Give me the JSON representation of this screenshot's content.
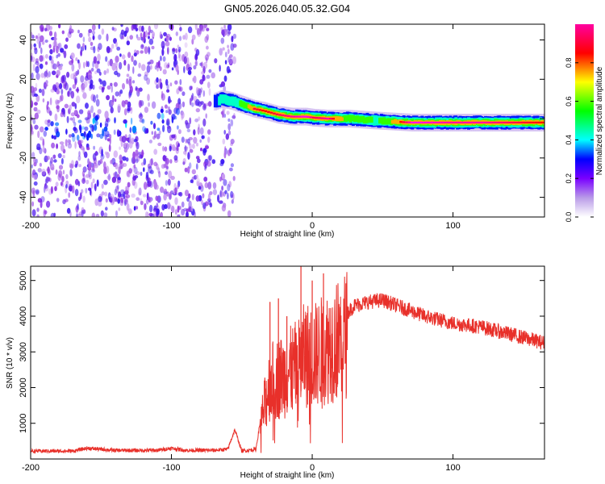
{
  "title": "GN05.2026.040.05.32.G04",
  "chart_data": [
    {
      "type": "heatmap",
      "xlabel": "Height of straight line (km)",
      "ylabel": "Frequency (Hz)",
      "xlim": [
        -200,
        165
      ],
      "ylim": [
        -50,
        48
      ],
      "x_ticks": [
        -200,
        -100,
        0,
        100
      ],
      "y_ticks": [
        -40,
        -20,
        0,
        20,
        40
      ],
      "colorbar": {
        "label": "Normalized spectral amplitude",
        "range": [
          0,
          1
        ],
        "ticks": [
          0.0,
          0.2,
          0.4,
          0.6,
          0.8
        ],
        "tick_labels": [
          "0.0",
          "0.2",
          "0.4",
          "0.6",
          "0.8"
        ],
        "colors": [
          "#ffffff",
          "#8a2be2",
          "#0000ff",
          "#00ffff",
          "#00ff00",
          "#ffff00",
          "#ff0000",
          "#ff00ff"
        ]
      },
      "noise_region_x": [
        -200,
        -55
      ],
      "signal_ridge": {
        "x": [
          -72,
          -65,
          -58,
          -50,
          -42,
          -35,
          -25,
          -15,
          -5,
          0,
          10,
          25,
          45,
          70,
          95,
          120,
          165
        ],
        "freq_hz": [
          8,
          10,
          9,
          7,
          5,
          4,
          2,
          1,
          1,
          0.5,
          0,
          0,
          -1,
          -2,
          -2,
          -2,
          -2
        ],
        "peak_amplitude": [
          0.35,
          0.4,
          0.45,
          0.55,
          0.85,
          0.8,
          0.85,
          0.9,
          0.95,
          0.85,
          0.9,
          0.6,
          0.5,
          0.95,
          0.9,
          0.9,
          0.8
        ]
      }
    },
    {
      "type": "line",
      "xlabel": "Height of straight line (km)",
      "ylabel": "SNR (10 * v/v)",
      "xlim": [
        -200,
        165
      ],
      "ylim": [
        0,
        5400
      ],
      "x_ticks": [
        -200,
        -100,
        0,
        100
      ],
      "y_ticks": [
        1000,
        2000,
        3000,
        4000,
        5000
      ],
      "color": "#e8302a",
      "envelope": {
        "x": [
          -200,
          -170,
          -160,
          -140,
          -110,
          -100,
          -90,
          -70,
          -60,
          -55,
          -50,
          -40,
          -35,
          -30,
          -20,
          -10,
          -5,
          0,
          10,
          20,
          30,
          40,
          50,
          60,
          80,
          100,
          120,
          140,
          165
        ],
        "y": [
          200,
          200,
          280,
          220,
          220,
          280,
          220,
          220,
          250,
          800,
          200,
          250,
          1500,
          2500,
          2700,
          3000,
          3400,
          3300,
          3600,
          3900,
          4300,
          4400,
          4450,
          4300,
          4000,
          3800,
          3700,
          3500,
          3250
        ]
      },
      "spikes": {
        "x": [
          -30,
          -24,
          -18,
          -8,
          0,
          8
        ],
        "y": [
          4400,
          4500,
          4000,
          5400,
          5000,
          5200
        ]
      }
    }
  ]
}
